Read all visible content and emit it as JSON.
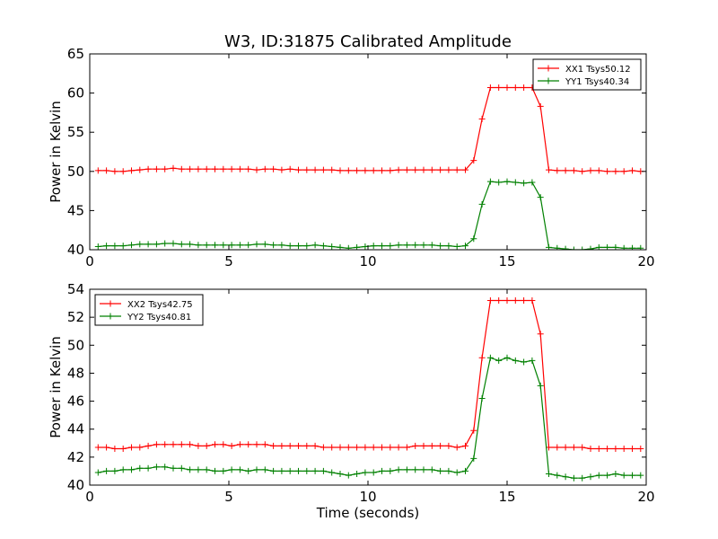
{
  "title": "W3, ID:31875 Calibrated Amplitude",
  "chart_data": [
    {
      "type": "line",
      "xlabel": "",
      "ylabel": "Power in Kelvin",
      "xlim": [
        0,
        20
      ],
      "ylim": [
        40,
        65
      ],
      "xticks": [
        "0",
        "5",
        "10",
        "15",
        "20"
      ],
      "yticks": [
        "40",
        "45",
        "50",
        "55",
        "60",
        "65"
      ],
      "legend": "top-right",
      "grid": false,
      "x": [
        0.3,
        0.6,
        0.9,
        1.2,
        1.5,
        1.8,
        2.1,
        2.4,
        2.7,
        3.0,
        3.3,
        3.6,
        3.9,
        4.2,
        4.5,
        4.8,
        5.1,
        5.4,
        5.7,
        6.0,
        6.3,
        6.6,
        6.9,
        7.2,
        7.5,
        7.8,
        8.1,
        8.4,
        8.7,
        9.0,
        9.3,
        9.6,
        9.9,
        10.2,
        10.5,
        10.8,
        11.1,
        11.4,
        11.7,
        12.0,
        12.3,
        12.6,
        12.9,
        13.2,
        13.5,
        13.8,
        14.1,
        14.4,
        14.7,
        15.0,
        15.3,
        15.6,
        15.9,
        16.2,
        16.5,
        16.8,
        17.1,
        17.4,
        17.7,
        18.0,
        18.3,
        18.6,
        18.9,
        19.2,
        19.5,
        19.8
      ],
      "series": [
        {
          "name": "XX1 Tsys50.12",
          "color": "#ff0000",
          "values": [
            50.1,
            50.1,
            50.0,
            50.0,
            50.1,
            50.2,
            50.3,
            50.3,
            50.3,
            50.4,
            50.3,
            50.3,
            50.3,
            50.3,
            50.3,
            50.3,
            50.3,
            50.3,
            50.3,
            50.2,
            50.3,
            50.3,
            50.2,
            50.3,
            50.2,
            50.2,
            50.2,
            50.2,
            50.2,
            50.1,
            50.1,
            50.1,
            50.1,
            50.1,
            50.1,
            50.1,
            50.2,
            50.2,
            50.2,
            50.2,
            50.2,
            50.2,
            50.2,
            50.2,
            50.2,
            51.4,
            56.7,
            60.7,
            60.7,
            60.7,
            60.7,
            60.7,
            60.7,
            58.3,
            50.2,
            50.1,
            50.1,
            50.1,
            50.0,
            50.1,
            50.1,
            50.0,
            50.0,
            50.0,
            50.1,
            50.0
          ]
        },
        {
          "name": "YY1 Tsys40.34",
          "color": "#008000",
          "values": [
            40.4,
            40.5,
            40.5,
            40.5,
            40.6,
            40.7,
            40.7,
            40.7,
            40.8,
            40.8,
            40.7,
            40.7,
            40.6,
            40.6,
            40.6,
            40.6,
            40.6,
            40.6,
            40.6,
            40.7,
            40.7,
            40.6,
            40.6,
            40.5,
            40.5,
            40.5,
            40.6,
            40.5,
            40.4,
            40.3,
            40.2,
            40.3,
            40.4,
            40.5,
            40.5,
            40.5,
            40.6,
            40.6,
            40.6,
            40.6,
            40.6,
            40.5,
            40.5,
            40.4,
            40.5,
            41.4,
            45.8,
            48.7,
            48.6,
            48.7,
            48.6,
            48.5,
            48.6,
            46.7,
            40.3,
            40.2,
            40.1,
            40.0,
            40.0,
            40.1,
            40.3,
            40.3,
            40.3,
            40.2,
            40.2,
            40.2
          ]
        }
      ]
    },
    {
      "type": "line",
      "xlabel": "Time (seconds)",
      "ylabel": "Power in Kelvin",
      "xlim": [
        0,
        20
      ],
      "ylim": [
        40,
        54
      ],
      "xticks": [
        "0",
        "5",
        "10",
        "15",
        "20"
      ],
      "yticks": [
        "40",
        "42",
        "44",
        "46",
        "48",
        "50",
        "52",
        "54"
      ],
      "legend": "top-left",
      "grid": false,
      "x": [
        0.3,
        0.6,
        0.9,
        1.2,
        1.5,
        1.8,
        2.1,
        2.4,
        2.7,
        3.0,
        3.3,
        3.6,
        3.9,
        4.2,
        4.5,
        4.8,
        5.1,
        5.4,
        5.7,
        6.0,
        6.3,
        6.6,
        6.9,
        7.2,
        7.5,
        7.8,
        8.1,
        8.4,
        8.7,
        9.0,
        9.3,
        9.6,
        9.9,
        10.2,
        10.5,
        10.8,
        11.1,
        11.4,
        11.7,
        12.0,
        12.3,
        12.6,
        12.9,
        13.2,
        13.5,
        13.8,
        14.1,
        14.4,
        14.7,
        15.0,
        15.3,
        15.6,
        15.9,
        16.2,
        16.5,
        16.8,
        17.1,
        17.4,
        17.7,
        18.0,
        18.3,
        18.6,
        18.9,
        19.2,
        19.5,
        19.8
      ],
      "series": [
        {
          "name": "XX2 Tsys42.75",
          "color": "#ff0000",
          "values": [
            42.7,
            42.7,
            42.6,
            42.6,
            42.7,
            42.7,
            42.8,
            42.9,
            42.9,
            42.9,
            42.9,
            42.9,
            42.8,
            42.8,
            42.9,
            42.9,
            42.8,
            42.9,
            42.9,
            42.9,
            42.9,
            42.8,
            42.8,
            42.8,
            42.8,
            42.8,
            42.8,
            42.7,
            42.7,
            42.7,
            42.7,
            42.7,
            42.7,
            42.7,
            42.7,
            42.7,
            42.7,
            42.7,
            42.8,
            42.8,
            42.8,
            42.8,
            42.8,
            42.7,
            42.8,
            43.9,
            49.1,
            53.2,
            53.2,
            53.2,
            53.2,
            53.2,
            53.2,
            50.8,
            42.7,
            42.7,
            42.7,
            42.7,
            42.7,
            42.6,
            42.6,
            42.6,
            42.6,
            42.6,
            42.6,
            42.6
          ]
        },
        {
          "name": "YY2 Tsys40.81",
          "color": "#008000",
          "values": [
            40.9,
            41.0,
            41.0,
            41.1,
            41.1,
            41.2,
            41.2,
            41.3,
            41.3,
            41.2,
            41.2,
            41.1,
            41.1,
            41.1,
            41.0,
            41.0,
            41.1,
            41.1,
            41.0,
            41.1,
            41.1,
            41.0,
            41.0,
            41.0,
            41.0,
            41.0,
            41.0,
            41.0,
            40.9,
            40.8,
            40.7,
            40.8,
            40.9,
            40.9,
            41.0,
            41.0,
            41.1,
            41.1,
            41.1,
            41.1,
            41.1,
            41.0,
            41.0,
            40.9,
            41.0,
            41.9,
            46.2,
            49.1,
            48.9,
            49.1,
            48.9,
            48.8,
            48.9,
            47.1,
            40.8,
            40.7,
            40.6,
            40.5,
            40.5,
            40.6,
            40.7,
            40.7,
            40.8,
            40.7,
            40.7,
            40.7
          ]
        }
      ]
    }
  ]
}
